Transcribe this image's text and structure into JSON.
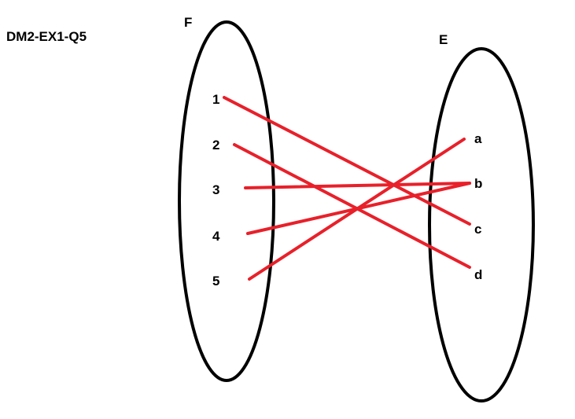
{
  "title": "DM2-EX1-Q5",
  "sets": {
    "left": {
      "name": "F",
      "elements": [
        "1",
        "2",
        "3",
        "4",
        "5"
      ]
    },
    "right": {
      "name": "E",
      "elements": [
        "a",
        "b",
        "c",
        "d"
      ]
    }
  },
  "mapping": [
    {
      "from": "1",
      "to": "c"
    },
    {
      "from": "2",
      "to": "d"
    },
    {
      "from": "3",
      "to": "b"
    },
    {
      "from": "4",
      "to": "b"
    },
    {
      "from": "5",
      "to": "a"
    }
  ],
  "colors": {
    "arrow": "#e8202a",
    "outline": "#000000",
    "background": "#ffffff"
  }
}
